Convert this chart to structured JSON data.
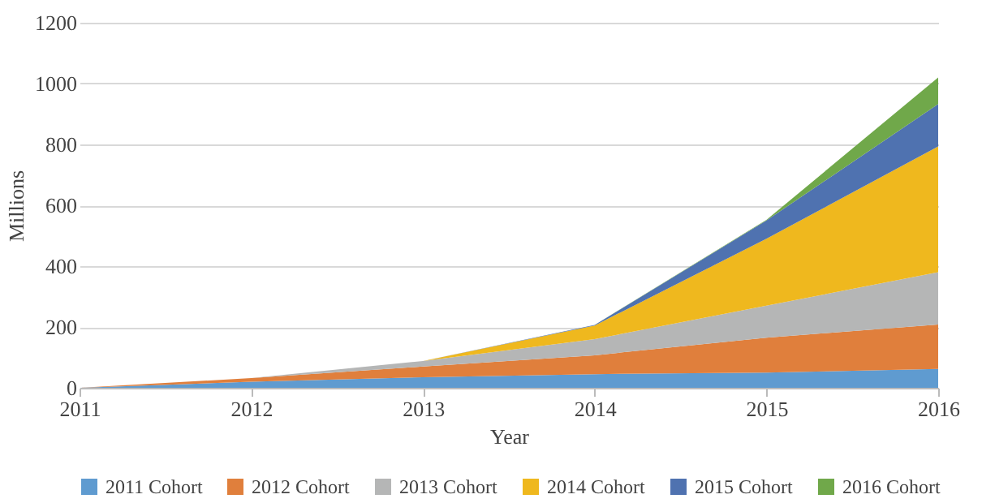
{
  "chart_data": {
    "type": "area",
    "stacked": true,
    "xlabel": "Year",
    "ylabel": "Millions",
    "x": [
      2011,
      2012,
      2013,
      2014,
      2015,
      2016
    ],
    "xlim": [
      2011,
      2016
    ],
    "xticks": [
      2011,
      2012,
      2013,
      2014,
      2015,
      2016
    ],
    "ylim": [
      0,
      1200
    ],
    "yticks": [
      0,
      200,
      400,
      600,
      800,
      1000,
      1200
    ],
    "grid": "y",
    "legend": "bottom",
    "series": [
      {
        "name": "2011 Cohort",
        "color": "#5f9bd0",
        "values": [
          0,
          20,
          35,
          45,
          50,
          62
        ]
      },
      {
        "name": "2012 Cohort",
        "color": "#e07f3c",
        "values": [
          0,
          12,
          35,
          62,
          115,
          146
        ]
      },
      {
        "name": "2013 Cohort",
        "color": "#b5b6b6",
        "values": [
          0,
          0,
          18,
          53,
          105,
          172
        ]
      },
      {
        "name": "2014 Cohort",
        "color": "#efb81e",
        "values": [
          0,
          0,
          0,
          45,
          220,
          413
        ]
      },
      {
        "name": "2015 Cohort",
        "color": "#4f72b0",
        "values": [
          0,
          0,
          0,
          2,
          60,
          140
        ]
      },
      {
        "name": "2016 Cohort",
        "color": "#70a84a",
        "values": [
          0,
          0,
          0,
          0,
          2,
          87
        ]
      }
    ]
  }
}
